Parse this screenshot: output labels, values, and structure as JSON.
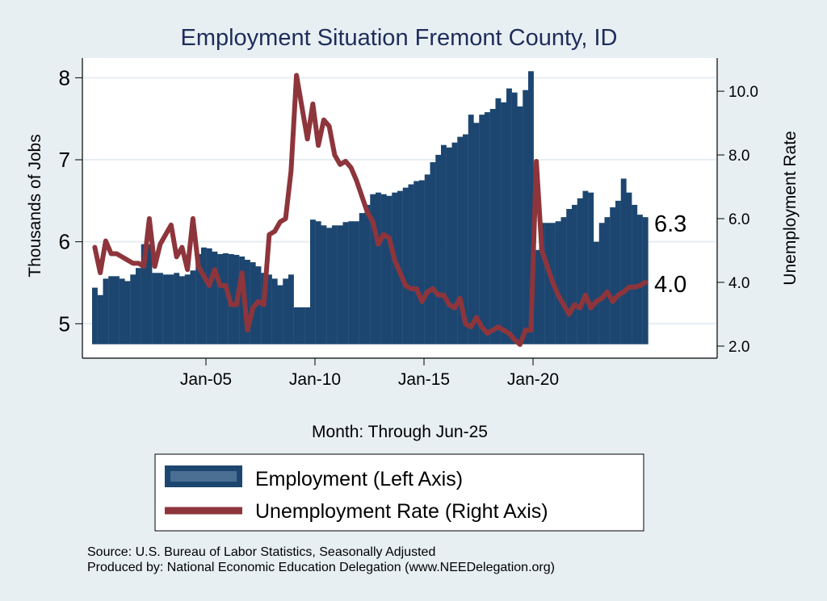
{
  "colors": {
    "background": "#e8eff3",
    "employment": "#1c4670",
    "unemployment": "#8e353c",
    "title": "#1e2d5a",
    "grid": "#e6edf2"
  },
  "chart_data": {
    "type": "bar+line",
    "title": "Employment Situation Fremont  County, ID",
    "xlabel": "Month: Through Jun-25",
    "ylabel_left": "Thousands of Jobs",
    "ylabel_right": "Unemployment Rate",
    "x_ticks": [
      "Jan-05",
      "Jan-10",
      "Jan-15",
      "Jan-20"
    ],
    "x_tick_years": [
      2005,
      2010,
      2015,
      2020
    ],
    "y_left_ticks": [
      "5",
      "6",
      "7",
      "8"
    ],
    "y_left_tick_values": [
      5,
      6,
      7,
      8
    ],
    "y_right_ticks": [
      "2.0",
      "4.0",
      "6.0",
      "8.0",
      "10.0"
    ],
    "y_right_tick_values": [
      2,
      4,
      6,
      8,
      10
    ],
    "ylim_left": [
      4.58,
      8.24
    ],
    "ylim_right": [
      1.62,
      11.04
    ],
    "x_start": "2000-Q1",
    "frequency": "quarterly (approximated from monthly plot)",
    "grid": true,
    "legend_position": "bottom",
    "series": [
      {
        "name": "Employment (Left Axis)",
        "type": "bar",
        "axis": "left",
        "end_label": "6.3",
        "values": [
          5.44,
          5.35,
          5.55,
          5.58,
          5.58,
          5.55,
          5.52,
          5.6,
          5.68,
          5.97,
          5.97,
          5.62,
          5.62,
          5.6,
          5.6,
          5.62,
          5.58,
          5.6,
          5.65,
          5.85,
          5.93,
          5.92,
          5.88,
          5.85,
          5.86,
          5.85,
          5.84,
          5.82,
          5.78,
          5.75,
          5.7,
          5.62,
          5.6,
          5.55,
          5.47,
          5.55,
          5.6,
          5.2,
          5.2,
          5.2,
          6.27,
          6.25,
          6.2,
          6.17,
          6.2,
          6.2,
          6.24,
          6.25,
          6.25,
          6.35,
          6.45,
          6.58,
          6.6,
          6.58,
          6.56,
          6.6,
          6.62,
          6.66,
          6.7,
          6.74,
          6.75,
          6.82,
          6.97,
          7.06,
          7.18,
          7.15,
          7.21,
          7.28,
          7.31,
          7.55,
          7.45,
          7.55,
          7.58,
          7.62,
          7.75,
          7.7,
          7.87,
          7.82,
          7.65,
          7.85,
          8.08,
          5.9,
          6.23,
          6.23,
          6.23,
          6.25,
          6.3,
          6.4,
          6.45,
          6.53,
          6.62,
          6.6,
          6.0,
          6.23,
          6.3,
          6.42,
          6.5,
          6.77,
          6.6,
          6.45,
          6.33,
          6.3
        ]
      },
      {
        "name": "Unemployment Rate (Right Axis)",
        "type": "line",
        "axis": "right",
        "end_label": "4.0",
        "values": [
          5.1,
          4.3,
          5.3,
          4.9,
          4.9,
          4.8,
          4.7,
          4.6,
          4.6,
          4.5,
          6.0,
          4.5,
          5.2,
          5.5,
          5.8,
          4.8,
          5.1,
          4.4,
          6.0,
          4.5,
          4.2,
          3.9,
          4.4,
          3.9,
          3.9,
          3.3,
          3.3,
          4.3,
          2.5,
          3.2,
          3.4,
          3.3,
          5.5,
          5.6,
          5.9,
          6.0,
          7.5,
          10.5,
          9.5,
          8.5,
          9.6,
          8.3,
          9.1,
          8.9,
          8.0,
          7.7,
          7.8,
          7.6,
          7.2,
          6.7,
          6.2,
          5.9,
          5.2,
          5.5,
          5.4,
          4.7,
          4.3,
          3.9,
          3.8,
          3.8,
          3.4,
          3.7,
          3.8,
          3.6,
          3.6,
          3.3,
          3.2,
          3.5,
          2.7,
          2.6,
          2.9,
          2.6,
          2.4,
          2.5,
          2.6,
          2.5,
          2.4,
          2.2,
          2.05,
          2.5,
          2.5,
          7.8,
          5.0,
          4.5,
          4.0,
          3.6,
          3.3,
          3.0,
          3.3,
          3.2,
          3.6,
          3.2,
          3.4,
          3.5,
          3.7,
          3.4,
          3.6,
          3.7,
          3.85,
          3.85,
          3.9,
          4.0
        ]
      }
    ]
  },
  "footer": {
    "source": "Source: U.S. Bureau of Labor Statistics, Seasonally Adjusted",
    "produced_by": "Produced by: National Economic Education Delegation (www.NEEDelegation.org)"
  }
}
